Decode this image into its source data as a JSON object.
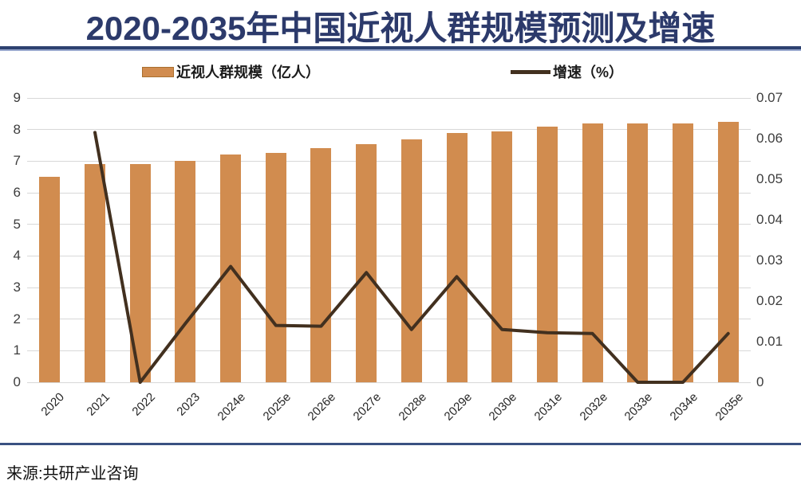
{
  "title": "2020-2035年中国近视人群规模预测及增速",
  "legend": {
    "bar_label": "近视人群规模（亿人）",
    "line_label": "增速（%）"
  },
  "source": "来源:共研产业咨询",
  "chart_data": {
    "type": "combo-bar-line",
    "title": "2020-2035年中国近视人群规模预测及增速",
    "categories": [
      "2020",
      "2021",
      "2022",
      "2023",
      "2024e",
      "2025e",
      "2026e",
      "2027e",
      "2028e",
      "2029e",
      "2030e",
      "2031e",
      "2032e",
      "2033e",
      "2034e",
      "2035e"
    ],
    "series": [
      {
        "name": "近视人群规模（亿人）",
        "type": "bar",
        "y_axis": "left",
        "color": "#D18C4F",
        "values": [
          6.5,
          6.9,
          6.9,
          7.0,
          7.2,
          7.25,
          7.4,
          7.55,
          7.7,
          7.9,
          7.95,
          8.1,
          8.2,
          8.2,
          8.2,
          8.25
        ]
      },
      {
        "name": "增速（%）",
        "type": "line",
        "y_axis": "right",
        "color": "#42301F",
        "values": [
          null,
          0.0615,
          0,
          0.0145,
          0.0285,
          0.014,
          0.0138,
          0.027,
          0.013,
          0.026,
          0.013,
          0.0122,
          0.012,
          0,
          0,
          0.012
        ]
      }
    ],
    "left_axis": {
      "min": 0,
      "max": 9,
      "step": 1,
      "tick_labels": [
        "9",
        "8",
        "7",
        "6",
        "5",
        "4",
        "3",
        "2",
        "1",
        "0"
      ]
    },
    "right_axis": {
      "min": 0,
      "max": 0.07,
      "step": 0.01,
      "tick_labels": [
        "0.07",
        "0.06",
        "0.05",
        "0.04",
        "0.03",
        "0.02",
        "0.01",
        "0"
      ]
    },
    "grid": true,
    "legend_position": "top"
  }
}
